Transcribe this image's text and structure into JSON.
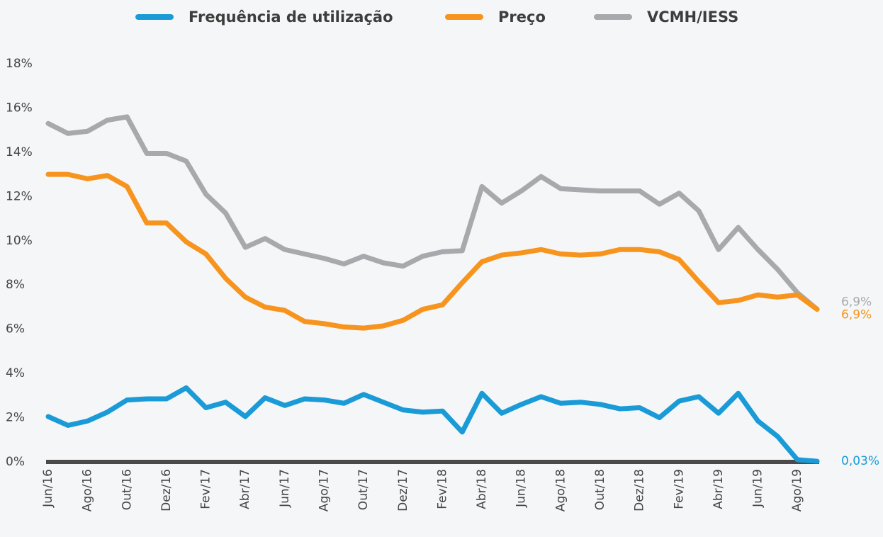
{
  "chart_data": {
    "type": "line",
    "categories": [
      "Jun/16",
      null,
      "Ago/16",
      null,
      "Out/16",
      null,
      "Dez/16",
      null,
      "Fev/17",
      null,
      "Abr/17",
      null,
      "Jun/17",
      null,
      "Ago/17",
      null,
      "Out/17",
      null,
      "Dez/17",
      null,
      "Fev/18",
      null,
      "Abr/18",
      null,
      "Jun/18",
      null,
      "Ago/18",
      null,
      "Out/18",
      null,
      "Dez/18",
      null,
      "Fev/19",
      null,
      "Abr/19",
      null,
      "Jun/19",
      null,
      "Ago/19",
      null
    ],
    "series": [
      {
        "name": "Frequência de utilização",
        "color": "#1a9bd7",
        "values": [
          2.05,
          1.65,
          1.85,
          2.25,
          2.8,
          2.85,
          2.85,
          3.35,
          2.45,
          2.7,
          2.05,
          2.9,
          2.55,
          2.85,
          2.8,
          2.65,
          3.05,
          2.7,
          2.35,
          2.25,
          2.3,
          1.35,
          3.1,
          2.2,
          2.6,
          2.95,
          2.65,
          2.7,
          2.6,
          2.4,
          2.45,
          2.0,
          2.75,
          2.95,
          2.2,
          3.1,
          1.85,
          1.15,
          0.1,
          0.03
        ],
        "value_labels": [
          null,
          null,
          null,
          null,
          null,
          null,
          null,
          null,
          null,
          null,
          null,
          null,
          null,
          null,
          null,
          null,
          null,
          null,
          null,
          null,
          null,
          null,
          null,
          null,
          null,
          null,
          null,
          null,
          null,
          null,
          null,
          null,
          null,
          null,
          null,
          null,
          null,
          null,
          null,
          "0,03%"
        ]
      },
      {
        "name": "Preço",
        "color": "#f7941d",
        "values": [
          13.0,
          13.0,
          12.8,
          12.95,
          12.45,
          10.8,
          10.8,
          9.95,
          9.4,
          8.3,
          7.45,
          7.0,
          6.85,
          6.35,
          6.25,
          6.1,
          6.05,
          6.15,
          6.4,
          6.9,
          7.1,
          8.1,
          9.05,
          9.35,
          9.45,
          9.6,
          9.4,
          9.35,
          9.4,
          9.6,
          9.6,
          9.5,
          9.15,
          8.15,
          7.2,
          7.3,
          7.55,
          7.45,
          7.55,
          6.9
        ],
        "value_labels": [
          null,
          null,
          null,
          null,
          null,
          null,
          null,
          null,
          null,
          null,
          null,
          null,
          null,
          null,
          null,
          null,
          null,
          null,
          null,
          null,
          null,
          null,
          null,
          null,
          null,
          null,
          null,
          null,
          null,
          null,
          null,
          null,
          null,
          null,
          null,
          null,
          null,
          null,
          null,
          "6,9%"
        ]
      },
      {
        "name": "VCMH/IESS",
        "color": "#a7a9ac",
        "values": [
          15.3,
          14.85,
          14.95,
          15.45,
          15.6,
          13.95,
          13.95,
          13.6,
          12.1,
          11.25,
          9.7,
          10.1,
          9.6,
          9.4,
          9.2,
          8.95,
          9.3,
          9.0,
          8.85,
          9.3,
          9.5,
          9.55,
          12.45,
          11.7,
          12.25,
          12.9,
          12.35,
          12.3,
          12.25,
          12.25,
          12.25,
          11.65,
          12.15,
          11.35,
          9.6,
          10.6,
          9.6,
          8.7,
          7.65,
          6.9
        ],
        "value_labels": [
          null,
          null,
          null,
          null,
          null,
          null,
          null,
          null,
          null,
          null,
          null,
          null,
          null,
          null,
          null,
          null,
          null,
          null,
          null,
          null,
          null,
          null,
          null,
          null,
          null,
          null,
          null,
          null,
          null,
          null,
          null,
          null,
          null,
          null,
          null,
          null,
          null,
          null,
          null,
          "6,9%"
        ]
      }
    ],
    "ylim": [
      0,
      18
    ],
    "yticks": [
      {
        "value": 0,
        "label": "0%"
      },
      {
        "value": 2,
        "label": "2%"
      },
      {
        "value": 4,
        "label": "4%"
      },
      {
        "value": 6,
        "label": "6%"
      },
      {
        "value": 8,
        "label": "8%"
      },
      {
        "value": 10,
        "label": "10%"
      },
      {
        "value": 12,
        "label": "12%"
      },
      {
        "value": 14,
        "label": "14%"
      },
      {
        "value": 16,
        "label": "16%"
      },
      {
        "value": 18,
        "label": "18%"
      }
    ],
    "grid": false,
    "legend": "top"
  }
}
